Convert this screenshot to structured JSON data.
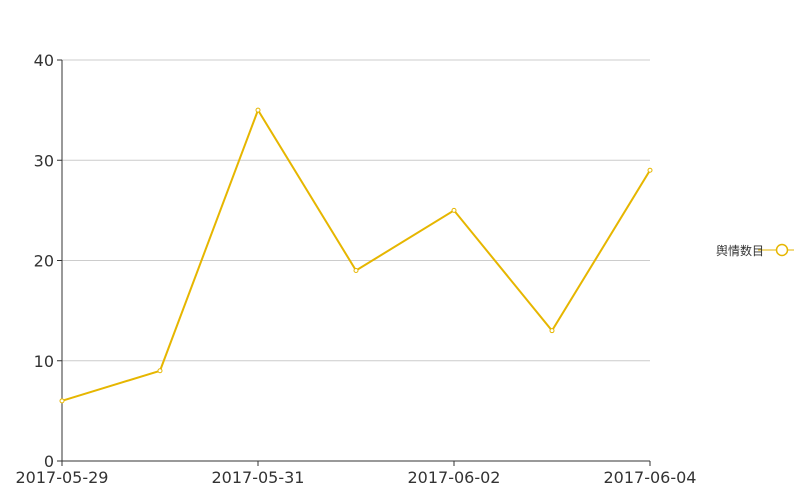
{
  "chart_data": {
    "type": "line",
    "x": [
      "2017-05-29",
      "2017-05-30",
      "2017-05-31",
      "2017-06-01",
      "2017-06-02",
      "2017-06-03",
      "2017-06-04"
    ],
    "x_tick_labels": [
      "2017-05-29",
      "2017-05-31",
      "2017-06-02",
      "2017-06-04"
    ],
    "series": [
      {
        "name": "舆情数目",
        "values": [
          6,
          9,
          35,
          19,
          25,
          13,
          29
        ]
      }
    ],
    "ylim": [
      0,
      40
    ],
    "y_ticks": [
      0,
      10,
      20,
      30,
      40
    ],
    "grid": true,
    "legend": "right",
    "color": "#e6b600"
  }
}
